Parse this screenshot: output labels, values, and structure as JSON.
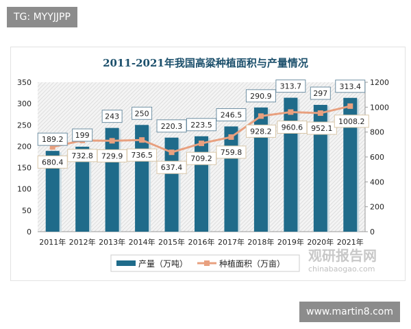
{
  "tags": {
    "top": "TG: MYYJJPP",
    "bottom": "www.martin8.com"
  },
  "watermark": {
    "cn": "观研报告网",
    "en": "chinabaogao.com"
  },
  "chart_data": {
    "type": "bar+line",
    "title": "2011-2021年我国高粱种植面积与产量情况",
    "categories": [
      "2011年",
      "2012年",
      "2013年",
      "2014年",
      "2015年",
      "2016年",
      "2017年",
      "2018年",
      "2019年",
      "2020年",
      "2021年"
    ],
    "series": [
      {
        "name": "产量（万吨）",
        "type": "bar",
        "axis": "left",
        "color": "#1f6b8a",
        "values": [
          189.2,
          199,
          243,
          250,
          220.3,
          223.5,
          246.5,
          290.9,
          313.7,
          297,
          313.4
        ]
      },
      {
        "name": "种植面积（万亩）",
        "type": "line",
        "axis": "right",
        "color": "#e8a07f",
        "values": [
          680.4,
          732.8,
          729.9,
          736.5,
          637.4,
          709.2,
          759.8,
          928.2,
          960.6,
          952.1,
          1008.2
        ]
      }
    ],
    "left_axis": {
      "ylim": [
        0,
        350
      ],
      "ticks": [
        "0",
        "50",
        "100",
        "150",
        "200",
        "250",
        "300",
        "350"
      ]
    },
    "right_axis": {
      "ylim": [
        0,
        1200
      ],
      "ticks": [
        "0",
        "200",
        "400",
        "600",
        "800",
        "1000",
        "1200"
      ]
    },
    "legend_placement": "bottom",
    "grid": false
  }
}
